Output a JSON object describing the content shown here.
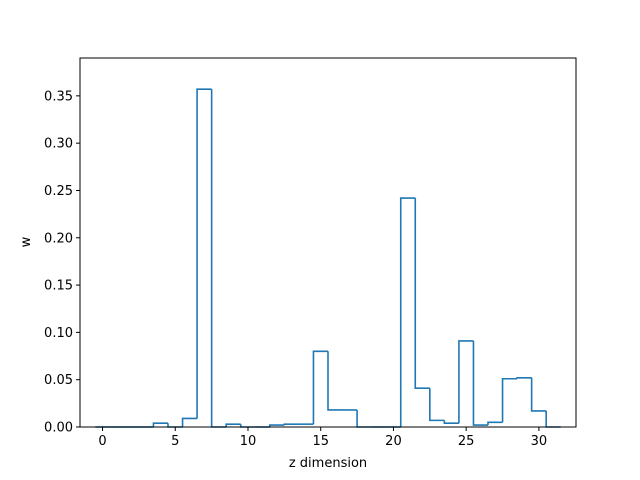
{
  "chart_data": {
    "type": "bar",
    "style": "step-histogram",
    "xlabel": "z dimension",
    "ylabel": "w",
    "xlim": [
      -1.55,
      32.55
    ],
    "ylim": [
      0,
      0.39
    ],
    "x_ticks": [
      0,
      5,
      10,
      15,
      20,
      25,
      30
    ],
    "y_ticks": [
      0.0,
      0.05,
      0.1,
      0.15,
      0.2,
      0.25,
      0.3,
      0.35
    ],
    "grid": false,
    "legend": "none",
    "line_color": "#1f77b4",
    "x": [
      0,
      1,
      2,
      3,
      4,
      5,
      6,
      7,
      8,
      9,
      10,
      11,
      12,
      13,
      14,
      15,
      16,
      17,
      18,
      19,
      20,
      21,
      22,
      23,
      24,
      25,
      26,
      27,
      28,
      29,
      30,
      31
    ],
    "values": [
      0.0,
      0.0,
      0.0,
      0.0,
      0.004,
      0.0,
      0.009,
      0.357,
      0.0,
      0.003,
      0.0,
      0.0,
      0.002,
      0.003,
      0.003,
      0.08,
      0.018,
      0.018,
      0.0,
      0.0,
      0.0,
      0.242,
      0.041,
      0.007,
      0.004,
      0.091,
      0.002,
      0.005,
      0.051,
      0.052,
      0.017,
      0.0
    ]
  }
}
